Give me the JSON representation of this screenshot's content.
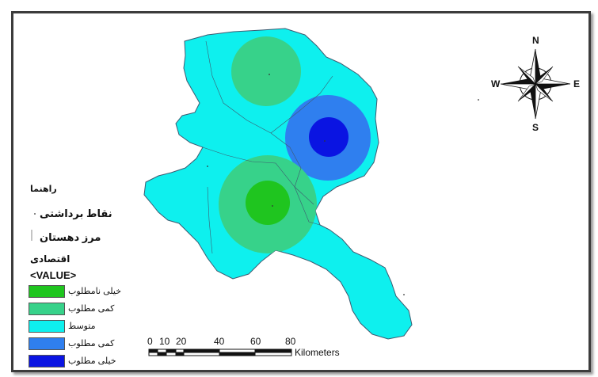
{
  "legend": {
    "title": "راهنما",
    "sample_points": "نقاط برداشتی",
    "boundary": "مرز دهستان",
    "layer": "اقتصادی",
    "value_header": "<VALUE>",
    "classes": [
      {
        "label": "خیلی نامطلوب",
        "color": "#1fc51f"
      },
      {
        "label": "کمی مطلوب",
        "color": "#37d28a"
      },
      {
        "label": "متوسط",
        "color": "#0ef0ee"
      },
      {
        "label": "کمی مطلوب",
        "color": "#2f7fef"
      },
      {
        "label": "خیلی مطلوب",
        "color": "#0a14e2"
      }
    ]
  },
  "scale_bar": {
    "ticks": [
      "0",
      "10",
      "20",
      "40",
      "60",
      "80"
    ],
    "unit": "Kilometers"
  },
  "north_arrow": {
    "n": "N",
    "s": "S",
    "e": "E",
    "w": "W"
  },
  "colors": {
    "frame": "#3c3c3c",
    "border_line": "#3e5a70"
  }
}
